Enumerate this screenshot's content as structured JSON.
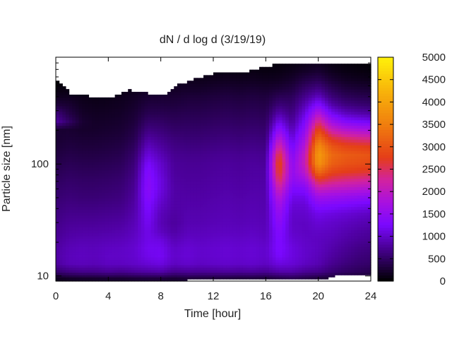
{
  "chart_data": {
    "type": "heatmap",
    "title": "dN / d log d (3/19/19)",
    "xlabel": "Time [hour]",
    "ylabel": "Particle size [nm]",
    "x_range": [
      0,
      24
    ],
    "y_range": [
      9,
      900
    ],
    "y_scale": "log",
    "x_ticks": [
      0,
      4,
      8,
      12,
      16,
      20,
      24
    ],
    "y_ticks": [
      10,
      100
    ],
    "colorbar": {
      "range": [
        0,
        5000
      ],
      "ticks": [
        0,
        500,
        1000,
        1500,
        2000,
        2500,
        3000,
        3500,
        4000,
        4500,
        5000
      ],
      "palette": "gnuplot (black-purple-red-orange-yellow)",
      "stops": [
        {
          "value": 0,
          "color": "#000000"
        },
        {
          "value": 750,
          "color": "#4a0096"
        },
        {
          "value": 1250,
          "color": "#7a08ff"
        },
        {
          "value": 1750,
          "color": "#a811e0"
        },
        {
          "value": 2250,
          "color": "#d222a0"
        },
        {
          "value": 2750,
          "color": "#e43d18"
        },
        {
          "value": 3500,
          "color": "#f07f0e"
        },
        {
          "value": 4250,
          "color": "#f8b40a"
        },
        {
          "value": 5000,
          "color": "#fff20a"
        }
      ]
    },
    "x_hours": [
      0,
      1,
      2,
      3,
      4,
      5,
      6,
      7,
      8,
      9,
      10,
      11,
      12,
      13,
      14,
      15,
      16,
      17,
      18,
      19,
      20,
      21,
      22,
      23,
      24
    ],
    "size_bins_nm": [
      9.5,
      11,
      13,
      15,
      18,
      21,
      25,
      30,
      36,
      43,
      51,
      61,
      72,
      86,
      102,
      121,
      144,
      171,
      203,
      241,
      287,
      341,
      405,
      481,
      571,
      679,
      800
    ],
    "values": [
      [
        150,
        200,
        220,
        230,
        250,
        250,
        280,
        300,
        300,
        260,
        300,
        300,
        300,
        300,
        280,
        300,
        280,
        350,
        400,
        350,
        300,
        250,
        220,
        200,
        180
      ],
      [
        550,
        650,
        700,
        700,
        750,
        720,
        780,
        820,
        850,
        720,
        760,
        750,
        760,
        780,
        760,
        780,
        740,
        850,
        850,
        750,
        700,
        580,
        500,
        450,
        400
      ],
      [
        780,
        900,
        920,
        900,
        950,
        950,
        980,
        1050,
        1100,
        950,
        1000,
        960,
        980,
        1000,
        980,
        1000,
        950,
        1100,
        1050,
        950,
        880,
        720,
        620,
        550,
        520
      ],
      [
        820,
        920,
        950,
        930,
        980,
        980,
        1020,
        1150,
        1200,
        1000,
        1050,
        1000,
        1020,
        1040,
        1020,
        1040,
        1000,
        1250,
        1100,
        1000,
        920,
        800,
        700,
        620,
        580
      ],
      [
        800,
        900,
        930,
        920,
        960,
        970,
        1020,
        1180,
        1180,
        980,
        1040,
        1000,
        1020,
        1040,
        1020,
        1040,
        1000,
        1300,
        1100,
        1000,
        950,
        850,
        760,
        680,
        640
      ],
      [
        760,
        850,
        880,
        880,
        900,
        920,
        980,
        1150,
        1100,
        900,
        980,
        960,
        980,
        1000,
        980,
        1000,
        960,
        1300,
        1050,
        980,
        950,
        900,
        820,
        760,
        720
      ],
      [
        720,
        800,
        820,
        820,
        840,
        860,
        940,
        1150,
        950,
        820,
        920,
        920,
        940,
        950,
        940,
        960,
        920,
        1350,
        1000,
        960,
        980,
        950,
        880,
        820,
        780
      ],
      [
        680,
        750,
        760,
        760,
        780,
        800,
        900,
        1200,
        900,
        780,
        880,
        880,
        900,
        920,
        900,
        920,
        900,
        1450,
        980,
        960,
        1050,
        1000,
        950,
        900,
        860
      ],
      [
        640,
        700,
        700,
        700,
        720,
        740,
        860,
        1250,
        920,
        800,
        860,
        860,
        880,
        900,
        880,
        900,
        880,
        1550,
        1000,
        1000,
        1150,
        1100,
        1050,
        1000,
        960
      ],
      [
        600,
        650,
        640,
        640,
        660,
        680,
        820,
        1300,
        980,
        820,
        840,
        840,
        860,
        880,
        860,
        880,
        860,
        1700,
        1050,
        1050,
        1350,
        1300,
        1250,
        1200,
        1150
      ],
      [
        560,
        600,
        580,
        580,
        600,
        630,
        780,
        1380,
        1050,
        820,
        820,
        820,
        840,
        860,
        840,
        860,
        850,
        1900,
        1150,
        1150,
        1650,
        1600,
        1550,
        1500,
        1450
      ],
      [
        520,
        560,
        540,
        540,
        560,
        590,
        740,
        1420,
        1100,
        820,
        800,
        800,
        820,
        840,
        820,
        840,
        840,
        2200,
        1300,
        1350,
        2100,
        2000,
        1950,
        1900,
        1850
      ],
      [
        470,
        520,
        500,
        500,
        520,
        550,
        700,
        1400,
        1100,
        800,
        780,
        780,
        800,
        820,
        800,
        820,
        820,
        2550,
        1450,
        1650,
        2650,
        2450,
        2350,
        2300,
        2250
      ],
      [
        420,
        470,
        450,
        450,
        470,
        500,
        650,
        1350,
        1050,
        780,
        760,
        760,
        780,
        800,
        780,
        800,
        800,
        2800,
        1500,
        1950,
        3300,
        2850,
        2750,
        2700,
        2650
      ],
      [
        370,
        420,
        400,
        400,
        420,
        450,
        600,
        1250,
        1000,
        760,
        740,
        740,
        760,
        780,
        760,
        780,
        760,
        2900,
        1450,
        2100,
        3800,
        3150,
        3000,
        2950,
        2900
      ],
      [
        320,
        370,
        350,
        350,
        370,
        400,
        540,
        1100,
        900,
        720,
        700,
        700,
        720,
        740,
        720,
        740,
        720,
        2700,
        1350,
        2050,
        3900,
        3250,
        3100,
        3050,
        3000
      ],
      [
        280,
        320,
        300,
        300,
        320,
        350,
        470,
        950,
        800,
        660,
        640,
        640,
        660,
        680,
        660,
        680,
        660,
        2300,
        1200,
        1900,
        3700,
        3050,
        2850,
        2800,
        2750
      ],
      [
        250,
        280,
        260,
        260,
        280,
        300,
        400,
        800,
        700,
        600,
        580,
        580,
        600,
        620,
        600,
        620,
        600,
        1900,
        1050,
        1700,
        3300,
        2650,
        2450,
        2350,
        2300
      ],
      [
        250,
        250,
        220,
        220,
        240,
        260,
        350,
        650,
        600,
        520,
        520,
        520,
        540,
        560,
        540,
        560,
        540,
        1500,
        900,
        1500,
        2900,
        2150,
        1900,
        1800,
        1750
      ],
      [
        800,
        500,
        250,
        200,
        210,
        230,
        300,
        520,
        500,
        450,
        460,
        460,
        480,
        500,
        480,
        500,
        480,
        1150,
        760,
        1300,
        2400,
        1650,
        1350,
        1250,
        1200
      ],
      [
        600,
        350,
        200,
        170,
        180,
        200,
        260,
        400,
        400,
        380,
        400,
        400,
        420,
        440,
        420,
        440,
        420,
        850,
        640,
        1100,
        1850,
        1200,
        950,
        850,
        800
      ],
      [
        300,
        250,
        160,
        140,
        150,
        170,
        220,
        320,
        320,
        310,
        340,
        340,
        360,
        380,
        360,
        380,
        360,
        600,
        540,
        900,
        1350,
        850,
        650,
        580,
        540
      ],
      [
        150,
        150,
        120,
        110,
        120,
        140,
        180,
        240,
        250,
        250,
        280,
        280,
        300,
        320,
        300,
        320,
        300,
        420,
        440,
        700,
        950,
        600,
        450,
        400,
        380
      ],
      [
        60,
        80,
        70,
        70,
        80,
        90,
        120,
        160,
        170,
        180,
        200,
        200,
        220,
        240,
        220,
        240,
        220,
        260,
        320,
        520,
        650,
        420,
        300,
        260,
        240
      ],
      [
        20,
        30,
        30,
        30,
        40,
        50,
        70,
        100,
        110,
        120,
        140,
        140,
        150,
        160,
        150,
        160,
        150,
        160,
        220,
        350,
        420,
        260,
        180,
        150,
        130
      ],
      [
        5,
        10,
        10,
        10,
        10,
        20,
        30,
        50,
        60,
        70,
        80,
        80,
        90,
        100,
        90,
        100,
        90,
        100,
        140,
        200,
        250,
        150,
        100,
        80,
        70
      ],
      [
        0,
        0,
        0,
        0,
        0,
        5,
        10,
        20,
        30,
        40,
        50,
        50,
        50,
        60,
        50,
        60,
        50,
        60,
        80,
        110,
        140,
        80,
        60,
        40,
        30
      ]
    ],
    "mask": {
      "description": "missing data (white) above upper size limit per time",
      "upper_limit_nm": [
        [
          0.0,
          560
        ],
        [
          0.5,
          500
        ],
        [
          1.2,
          420
        ],
        [
          4.0,
          390
        ],
        [
          5.0,
          420
        ],
        [
          5.5,
          460
        ],
        [
          7.5,
          420
        ],
        [
          8.3,
          420
        ],
        [
          8.8,
          460
        ],
        [
          9.5,
          520
        ],
        [
          12.0,
          640
        ],
        [
          15.0,
          680
        ],
        [
          16.2,
          760
        ],
        [
          20.0,
          800
        ],
        [
          24.0,
          800
        ]
      ],
      "lower_limit_nm": [
        [
          0.0,
          9
        ],
        [
          20.5,
          9.4
        ],
        [
          21.5,
          10.2
        ],
        [
          24.0,
          10.2
        ]
      ]
    }
  }
}
